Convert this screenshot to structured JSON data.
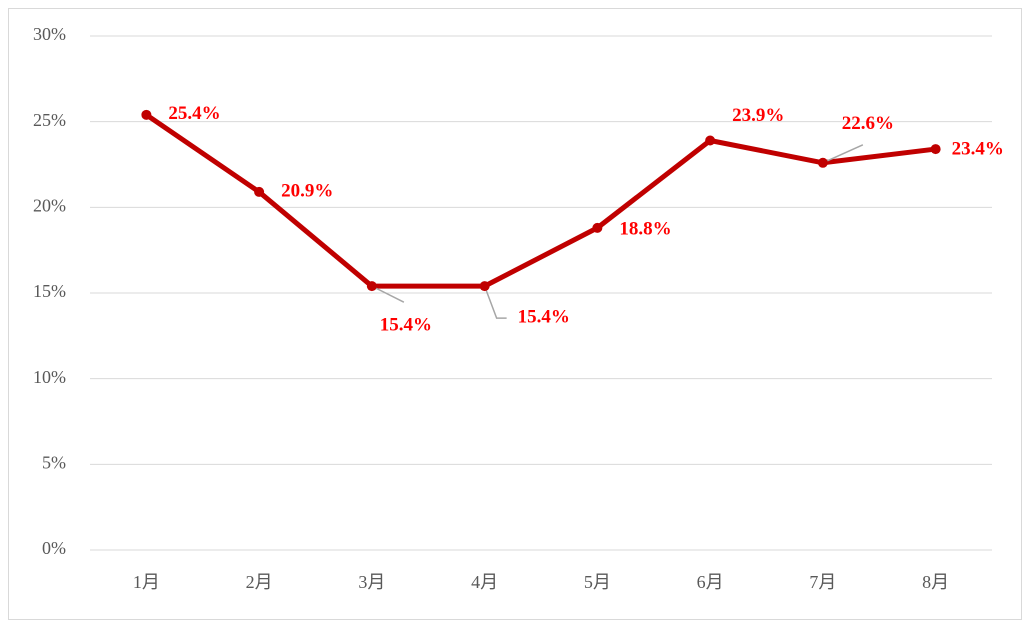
{
  "chart_data": {
    "type": "line",
    "categories": [
      "1月",
      "2月",
      "3月",
      "4月",
      "5月",
      "6月",
      "7月",
      "8月"
    ],
    "values": [
      25.4,
      20.9,
      15.4,
      15.4,
      18.8,
      23.9,
      22.6,
      23.4
    ],
    "value_labels": [
      "25.4%",
      "20.9%",
      "15.4%",
      "15.4%",
      "18.8%",
      "23.9%",
      "22.6%",
      "23.4%"
    ],
    "color": "#c00000",
    "label_color": "#ff0000",
    "ylim": [
      0,
      30
    ],
    "yticks": [
      {
        "value": 0,
        "label": "0%"
      },
      {
        "value": 5,
        "label": "5%"
      },
      {
        "value": 10,
        "label": "10%"
      },
      {
        "value": 15,
        "label": "15%"
      },
      {
        "value": 20,
        "label": "20%"
      },
      {
        "value": 25,
        "label": "25%"
      },
      {
        "value": 30,
        "label": "30%"
      }
    ],
    "grid": true
  }
}
